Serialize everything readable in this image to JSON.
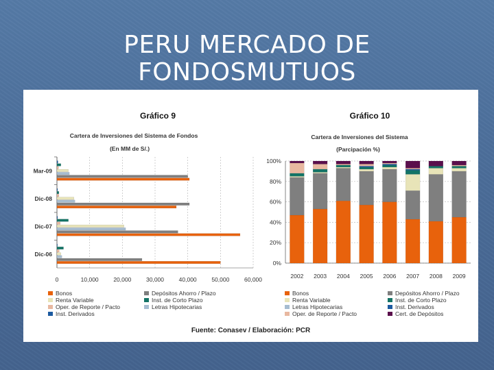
{
  "slide": {
    "title": "PERU MERCADO DE FONDOSMUTUOS"
  },
  "source": "Fuente: Conasev / Elaboración: PCR",
  "colors": {
    "Bonos": "#e8620c",
    "Depositos": "#7f7f7f",
    "Renta Variable": "#e8e4b8",
    "Inst. de Corto Plazo": "#147466",
    "Oper. de Reporte / Pacto": "#e8b8a0",
    "Letras Hipotecarias": "#a6bcd0",
    "Inst. Derivados": "#1c5aa0",
    "Cert. de Depositos": "#5a0f4c"
  },
  "chart_data": [
    {
      "type": "bar",
      "orientation": "horizontal",
      "title": "Gráfico 9",
      "subtitle": "Cartera de Inversiones del Sistema de Fondos",
      "unit_label": "(En MM de S/.)",
      "categories": [
        "Mar-09",
        "Dic-08",
        "Dic-07",
        "Dic-06"
      ],
      "xlim": [
        0,
        60000
      ],
      "xticks": [
        "0",
        "10,000",
        "20,000",
        "30,000",
        "40,000",
        "50,000",
        "60,000"
      ],
      "legend_position": "bottom",
      "series": [
        {
          "name": "Inst. Derivados",
          "values": [
            300,
            200,
            200,
            150
          ]
        },
        {
          "name": "Inst. de Corto Plazo",
          "values": [
            1200,
            600,
            3500,
            2000
          ]
        },
        {
          "name": "Oper. de Reporte / Pacto",
          "values": [
            500,
            600,
            1000,
            700
          ]
        },
        {
          "name": "Renta Variable",
          "values": [
            3500,
            5200,
            20500,
            1200
          ]
        },
        {
          "name": "Letras Hipotecarias",
          "values": [
            3800,
            5500,
            21000,
            1500
          ]
        },
        {
          "name": "Depósitos Ahorro / Plazo",
          "values": [
            40000,
            40500,
            37000,
            26000
          ]
        },
        {
          "name": "Bonos",
          "values": [
            40500,
            36500,
            56000,
            50000
          ]
        }
      ],
      "legend": [
        "Bonos",
        "Depósitos Ahorro / Plazo",
        "Renta Variable",
        "Inst. de Corto Plazo",
        "Oper. de Reporte / Pacto",
        "Letras Hipotecarias",
        "Inst. Derivados"
      ]
    },
    {
      "type": "bar",
      "stacked": true,
      "title": "Gráfico 10",
      "subtitle": "Cartera de Inversiones del Sistema",
      "unit_label": "(Parcipación %)",
      "categories": [
        "2002",
        "2003",
        "2004",
        "2005",
        "2006",
        "2007",
        "2008",
        "2009"
      ],
      "ylim": [
        0,
        100
      ],
      "yticks": [
        "0%",
        "20%",
        "40%",
        "60%",
        "80%",
        "100%"
      ],
      "legend_position": "bottom",
      "series": [
        {
          "name": "Bonos",
          "values": [
            47,
            53,
            61,
            57,
            60,
            43,
            41,
            45
          ]
        },
        {
          "name": "Depósitos Ahorro / Plazo",
          "values": [
            37,
            35,
            32,
            33,
            32,
            28,
            46,
            45
          ]
        },
        {
          "name": "Renta Variable",
          "values": [
            1,
            1,
            1,
            2,
            2,
            16,
            6,
            3
          ]
        },
        {
          "name": "Inst. de Corto Plazo",
          "values": [
            3,
            3,
            2,
            2,
            2,
            4,
            2,
            2
          ]
        },
        {
          "name": "Letras Hipotecarias",
          "values": [
            0,
            0,
            0,
            0,
            0,
            0,
            0,
            0
          ]
        },
        {
          "name": "Inst. Derivados",
          "values": [
            0,
            0,
            0,
            1,
            1,
            1,
            0,
            0
          ]
        },
        {
          "name": "Oper. de Reporte / Pacto",
          "values": [
            10,
            5,
            1,
            2,
            1,
            1,
            0,
            1
          ]
        },
        {
          "name": "Cert. de Depósitos",
          "values": [
            2,
            3,
            3,
            3,
            2,
            7,
            5,
            4
          ]
        }
      ],
      "legend": [
        "Bonos",
        "Depósitos Ahorro / Plazo",
        "Renta Variable",
        "Inst. de Corto Plazo",
        "Letras Hipotecarias",
        "Inst. Derivados",
        "Oper. de Reporte / Pacto",
        "Cert. de Depósitos"
      ]
    }
  ]
}
